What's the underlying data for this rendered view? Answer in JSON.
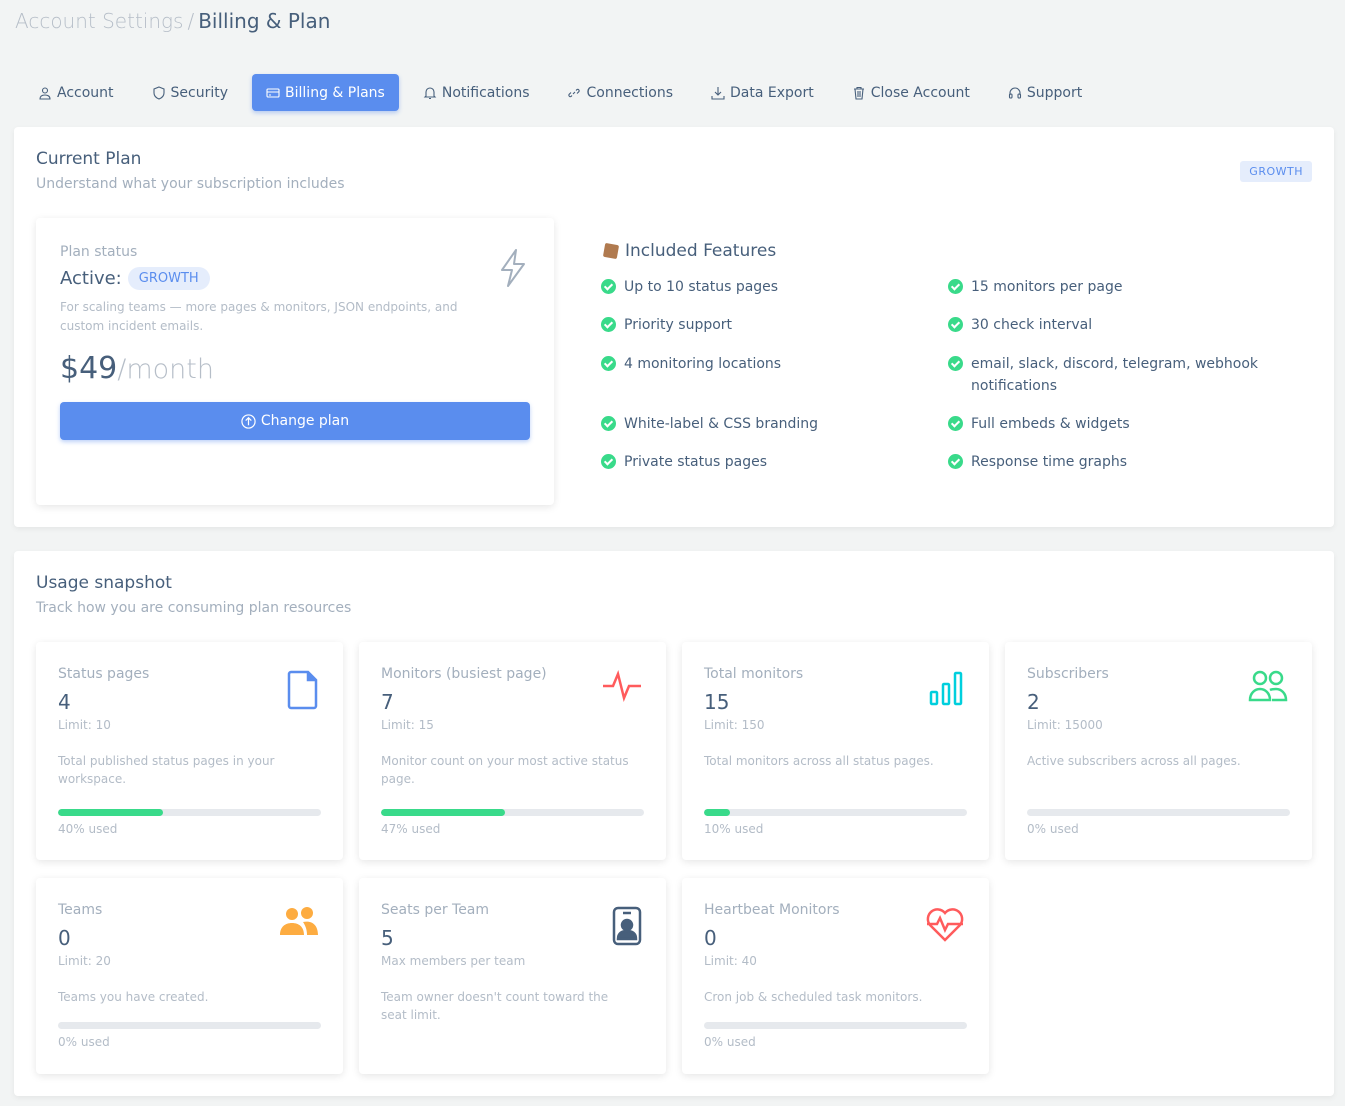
{
  "breadcrumb": {
    "parent": "Account Settings",
    "separator": "/",
    "current": "Billing & Plan"
  },
  "tabs": [
    {
      "label": "Account",
      "icon": "user-icon"
    },
    {
      "label": "Security",
      "icon": "shield-icon"
    },
    {
      "label": "Billing & Plans",
      "icon": "credit-card-icon",
      "active": true
    },
    {
      "label": "Notifications",
      "icon": "bell-icon"
    },
    {
      "label": "Connections",
      "icon": "link-icon"
    },
    {
      "label": "Data Export",
      "icon": "download-icon"
    },
    {
      "label": "Close Account",
      "icon": "trash-icon"
    },
    {
      "label": "Support",
      "icon": "headset-icon"
    }
  ],
  "current_plan": {
    "title": "Current Plan",
    "subtitle": "Understand what your subscription includes",
    "badge": "GROWTH",
    "status_label": "Plan status",
    "active_label": "Active:",
    "plan_name": "GROWTH",
    "description": "For scaling teams — more pages & monitors, JSON endpoints, and custom incident emails.",
    "price": "$49",
    "period": "/month",
    "change_button": "Change plan",
    "features_title": "Included Features",
    "features": [
      "Up to 10 status pages",
      "15 monitors per page",
      "Priority support",
      "30 check interval",
      "4 monitoring locations",
      "email, slack, discord, telegram, webhook notifications",
      "White-label & CSS branding",
      "Full embeds & widgets",
      "Private status pages",
      "Response time graphs"
    ]
  },
  "usage": {
    "title": "Usage snapshot",
    "subtitle": "Track how you are consuming plan resources",
    "items": [
      {
        "title": "Status pages",
        "value": "4",
        "limit": "Limit: 10",
        "desc": "Total published status pages in your workspace.",
        "percent": 40,
        "used": "40% used",
        "icon": "file-icon",
        "color": "#5a8dee"
      },
      {
        "title": "Monitors (busiest page)",
        "value": "7",
        "limit": "Limit: 15",
        "desc": "Monitor count on your most active status page.",
        "percent": 47,
        "used": "47% used",
        "icon": "activity-icon",
        "color": "#ff5b5c"
      },
      {
        "title": "Total monitors",
        "value": "15",
        "limit": "Limit: 150",
        "desc": "Total monitors across all status pages.",
        "percent": 10,
        "used": "10% used",
        "icon": "bar-chart-icon",
        "color": "#00cfdd"
      },
      {
        "title": "Subscribers",
        "value": "2",
        "limit": "Limit: 15000",
        "desc": "Active subscribers across all pages.",
        "percent": 0,
        "used": "0% used",
        "icon": "users-icon",
        "color": "#39da8a"
      },
      {
        "title": "Teams",
        "value": "0",
        "limit": "Limit: 20",
        "desc": "Teams you have created.",
        "percent": 0,
        "used": "0% used",
        "icon": "team-icon",
        "color": "#fdac41"
      },
      {
        "title": "Seats per Team",
        "value": "5",
        "limit": "Max members per team",
        "desc": "Team owner doesn't count toward the seat limit.",
        "icon": "id-badge-icon",
        "color": "#475f7b"
      },
      {
        "title": "Heartbeat Monitors",
        "value": "0",
        "limit": "Limit: 40",
        "desc": "Cron job & scheduled task monitors.",
        "percent": 0,
        "used": "0% used",
        "icon": "heart-pulse-icon",
        "color": "#ff5b5c"
      }
    ]
  }
}
